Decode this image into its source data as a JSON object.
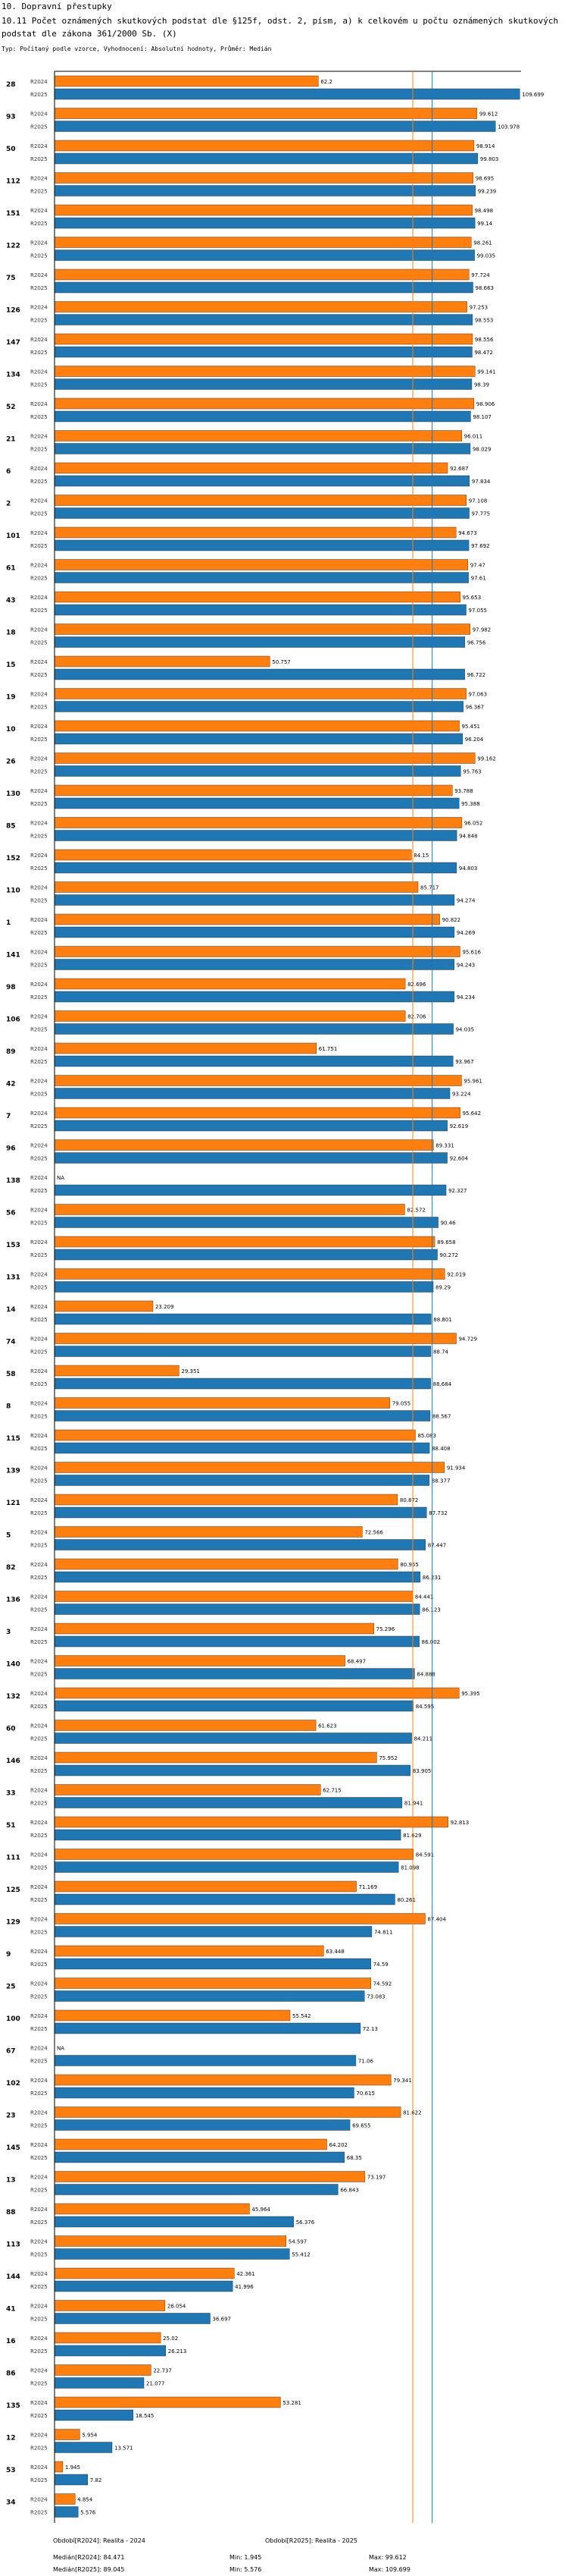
{
  "header": {
    "line1": "10. Dopravní přestupky",
    "line2": "10.11 Počet oznámených skutkových podstat dle §125f, odst. 2, písm, a) k celkovém u počtu oznámených skutkových podstat dle zákona 361/2000 Sb. (X)",
    "line3": "Typ: Počítaný podle vzorce, Vyhodnocení: Absolutní hodnoty, Průměr: Medián"
  },
  "colors": {
    "r2024": "#FF7F0E",
    "r2025": "#1F77B4",
    "median2024_line": "#FF7F0E",
    "median2025_line": "#1F77B4"
  },
  "chart_data": {
    "type": "bar",
    "orientation": "horizontal",
    "title": "10.11 Počet oznámených skutkových podstat dle §125f, odst. 2, písm, a) k celkovém u počtu oznámených skutkových podstat dle zákona 361/2000 Sb. (X)",
    "series_names": [
      "R2024",
      "R2025"
    ],
    "xlim": [
      0,
      110
    ],
    "na_label": "NA",
    "categories": [
      "28",
      "93",
      "50",
      "112",
      "151",
      "122",
      "75",
      "126",
      "147",
      "134",
      "52",
      "21",
      "6",
      "2",
      "101",
      "61",
      "43",
      "18",
      "15",
      "19",
      "10",
      "26",
      "130",
      "85",
      "152",
      "110",
      "1",
      "141",
      "98",
      "106",
      "89",
      "42",
      "7",
      "96",
      "138",
      "56",
      "153",
      "131",
      "14",
      "74",
      "58",
      "8",
      "115",
      "139",
      "121",
      "5",
      "82",
      "136",
      "3",
      "140",
      "132",
      "60",
      "146",
      "33",
      "51",
      "111",
      "125",
      "129",
      "9",
      "25",
      "100",
      "67",
      "102",
      "23",
      "145",
      "13",
      "88",
      "113",
      "144",
      "41",
      "16",
      "86",
      "135",
      "12",
      "53",
      "34"
    ],
    "series": [
      {
        "name": "R2024",
        "values": [
          62.2,
          99.612,
          98.914,
          98.695,
          98.498,
          98.261,
          97.724,
          97.253,
          98.556,
          99.141,
          98.906,
          96.011,
          92.687,
          97.108,
          94.673,
          97.47,
          95.653,
          97.982,
          50.757,
          97.063,
          95.451,
          99.162,
          93.788,
          96.052,
          84.15,
          85.717,
          90.822,
          95.616,
          82.696,
          82.706,
          61.751,
          95.961,
          95.642,
          89.331,
          null,
          82.572,
          89.658,
          92.019,
          23.209,
          94.729,
          29.351,
          79.055,
          85.083,
          91.934,
          80.872,
          72.566,
          80.955,
          84.441,
          75.296,
          68.497,
          95.395,
          61.623,
          75.952,
          62.715,
          92.813,
          84.591,
          71.169,
          87.404,
          63.448,
          74.592,
          55.542,
          null,
          79.341,
          81.622,
          64.202,
          73.197,
          45.964,
          54.597,
          42.361,
          26.054,
          25.02,
          22.737,
          53.281,
          5.954,
          1.945,
          4.854
        ]
      },
      {
        "name": "R2025",
        "values": [
          109.699,
          103.978,
          99.803,
          99.239,
          99.14,
          99.035,
          98.663,
          98.553,
          98.472,
          98.39,
          98.107,
          98.029,
          97.834,
          97.775,
          97.692,
          97.61,
          97.055,
          96.756,
          96.722,
          96.367,
          96.204,
          95.763,
          95.388,
          94.848,
          94.803,
          94.274,
          94.269,
          94.243,
          94.234,
          94.035,
          93.967,
          93.224,
          92.619,
          92.604,
          92.327,
          90.46,
          90.272,
          89.29,
          88.801,
          88.74,
          88.684,
          88.567,
          88.408,
          88.377,
          87.732,
          87.447,
          86.231,
          86.123,
          86.002,
          84.888,
          84.595,
          84.211,
          83.905,
          81.941,
          81.629,
          81.098,
          80.261,
          74.811,
          74.59,
          73.083,
          72.13,
          71.06,
          70.615,
          69.655,
          68.35,
          66.843,
          56.376,
          55.412,
          41.996,
          36.697,
          26.213,
          21.077,
          18.545,
          13.571,
          7.82,
          5.576
        ]
      }
    ]
  },
  "footer": {
    "legend_2024": "Období[R2024]: Realita - 2024",
    "legend_2025": "Období[R2025]: Realita - 2025",
    "median_2024": "Medián[R2024]: 84.471",
    "median_2025": "Medián[R2025]: 89.045",
    "min_2024": "Min: 1.945",
    "min_2025": "Min: 5.576",
    "max_2024": "Max: 99.612",
    "max_2025": "Max: 109.699"
  },
  "medians": {
    "r2024": 84.471,
    "r2025": 89.045
  }
}
